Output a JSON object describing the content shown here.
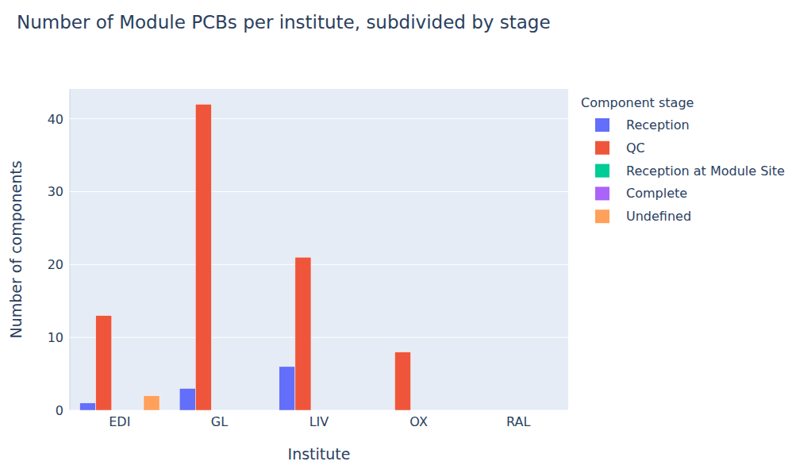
{
  "chart_data": {
    "type": "bar",
    "title": "Number of Module PCBs per institute, subdivided by stage",
    "x_label": "Institute",
    "y_label": "Number of components",
    "legend_title": "Component stage",
    "categories": [
      "EDI",
      "GL",
      "LIV",
      "OX",
      "RAL"
    ],
    "series": [
      {
        "name": "Reception",
        "color": "#636efa",
        "values": [
          1,
          3,
          6,
          0,
          0
        ]
      },
      {
        "name": "QC",
        "color": "#ef553b",
        "values": [
          13,
          42,
          21,
          8,
          0
        ]
      },
      {
        "name": "Reception at Module Site",
        "color": "#00cc96",
        "values": [
          0,
          0,
          0,
          0,
          0
        ]
      },
      {
        "name": "Complete",
        "color": "#ab63fa",
        "values": [
          0,
          0,
          0,
          0,
          0
        ]
      },
      {
        "name": "Undefined",
        "color": "#ffa15a",
        "values": [
          2,
          0,
          0,
          0,
          0
        ]
      }
    ],
    "ylim": [
      0,
      44.1
    ],
    "yticks": [
      0,
      10,
      20,
      30,
      40
    ],
    "grid": true,
    "legend": "right"
  }
}
